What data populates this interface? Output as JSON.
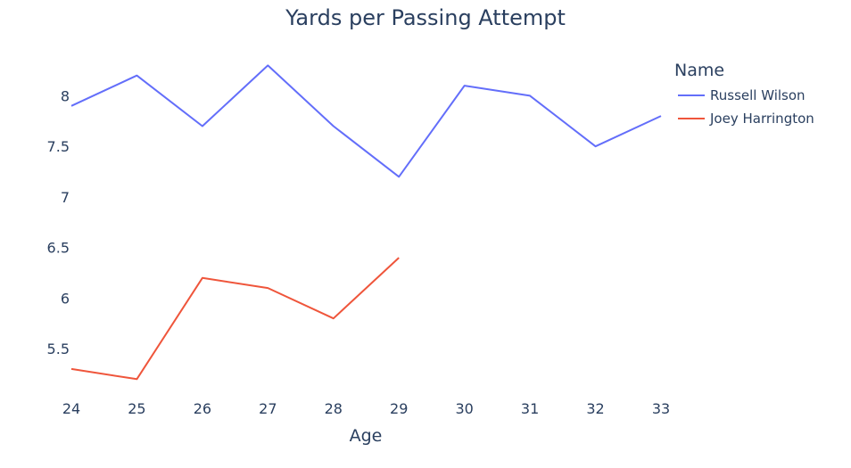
{
  "chart_data": {
    "type": "line",
    "title": "Yards per Passing Attempt",
    "xlabel": "Age",
    "ylabel": "",
    "x": [
      24,
      25,
      26,
      27,
      28,
      29,
      30,
      31,
      32,
      33
    ],
    "xlim": [
      24,
      33
    ],
    "ylim": [
      5.0,
      8.55
    ],
    "y_ticks": [
      5.5,
      6,
      6.5,
      7,
      7.5,
      8
    ],
    "y_tick_labels": [
      "5.5",
      "6",
      "6.5",
      "7",
      "7.5",
      "8"
    ],
    "x_tick_labels": [
      "24",
      "25",
      "26",
      "27",
      "28",
      "29",
      "30",
      "31",
      "32",
      "33"
    ],
    "grid": false,
    "legend": {
      "title": "Name",
      "position": "top-right"
    },
    "series": [
      {
        "name": "Russell Wilson",
        "color": "#636efa",
        "x": [
          24,
          25,
          26,
          27,
          28,
          29,
          30,
          31,
          32,
          33
        ],
        "values": [
          7.9,
          8.2,
          7.7,
          8.3,
          7.7,
          7.2,
          8.1,
          8.0,
          7.5,
          7.8
        ]
      },
      {
        "name": "Joey Harrington",
        "color": "#ef553b",
        "x": [
          24,
          25,
          26,
          27,
          28,
          29
        ],
        "values": [
          5.3,
          5.2,
          6.2,
          6.1,
          5.8,
          6.4
        ]
      }
    ]
  }
}
